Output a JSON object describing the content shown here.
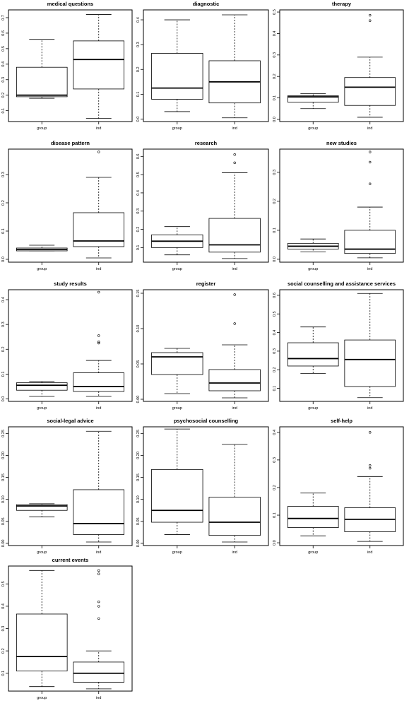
{
  "chart_data": [
    {
      "type": "box",
      "title": "medical questions",
      "categories": [
        "group",
        "ind"
      ],
      "ylim": [
        0.03,
        0.75
      ],
      "yticks": [
        0.1,
        0.2,
        0.3,
        0.4,
        0.5,
        0.6,
        0.7
      ],
      "ytick_labels": [
        "0.1",
        "0.2",
        "0.3",
        "0.4",
        "0.5",
        "0.6",
        "0.7"
      ],
      "boxes": [
        {
          "category": "group",
          "whisker_low": 0.18,
          "q1": 0.19,
          "median": 0.2,
          "q3": 0.38,
          "whisker_high": 0.56,
          "outliers": []
        },
        {
          "category": "ind",
          "whisker_low": 0.05,
          "q1": 0.24,
          "median": 0.43,
          "q3": 0.55,
          "whisker_high": 0.72,
          "outliers": []
        }
      ]
    },
    {
      "type": "box",
      "title": "diagnostic",
      "categories": [
        "group",
        "ind"
      ],
      "ylim": [
        -0.01,
        0.44
      ],
      "yticks": [
        0.0,
        0.1,
        0.2,
        0.3,
        0.4
      ],
      "ytick_labels": [
        "0.0",
        "0.1",
        "0.2",
        "0.3",
        "0.4"
      ],
      "boxes": [
        {
          "category": "group",
          "whisker_low": 0.03,
          "q1": 0.08,
          "median": 0.125,
          "q3": 0.265,
          "whisker_high": 0.4,
          "outliers": []
        },
        {
          "category": "ind",
          "whisker_low": 0.005,
          "q1": 0.065,
          "median": 0.15,
          "q3": 0.235,
          "whisker_high": 0.42,
          "outliers": []
        }
      ]
    },
    {
      "type": "box",
      "title": "therapy",
      "categories": [
        "group",
        "ind"
      ],
      "ylim": [
        -0.01,
        0.51
      ],
      "yticks": [
        0.0,
        0.1,
        0.2,
        0.3,
        0.4,
        0.5
      ],
      "ytick_labels": [
        "0.0",
        "0.1",
        "0.2",
        "0.3",
        "0.4",
        "0.5"
      ],
      "boxes": [
        {
          "category": "group",
          "whisker_low": 0.05,
          "q1": 0.08,
          "median": 0.105,
          "q3": 0.11,
          "whisker_high": 0.12,
          "outliers": []
        },
        {
          "category": "ind",
          "whisker_low": 0.01,
          "q1": 0.065,
          "median": 0.15,
          "q3": 0.195,
          "whisker_high": 0.29,
          "outliers": [
            0.46,
            0.485
          ]
        }
      ]
    },
    {
      "type": "box",
      "title": "disease pattern",
      "categories": [
        "group",
        "ind"
      ],
      "ylim": [
        -0.01,
        0.39
      ],
      "yticks": [
        0.0,
        0.1,
        0.2,
        0.3
      ],
      "ytick_labels": [
        "0.0",
        "0.1",
        "0.2",
        "0.3"
      ],
      "boxes": [
        {
          "category": "group",
          "whisker_low": 0.03,
          "q1": 0.03,
          "median": 0.035,
          "q3": 0.04,
          "whisker_high": 0.05,
          "outliers": []
        },
        {
          "category": "ind",
          "whisker_low": 0.005,
          "q1": 0.045,
          "median": 0.065,
          "q3": 0.165,
          "whisker_high": 0.29,
          "outliers": [
            0.38
          ]
        }
      ]
    },
    {
      "type": "box",
      "title": "research",
      "categories": [
        "group",
        "ind"
      ],
      "ylim": [
        0.02,
        0.64
      ],
      "yticks": [
        0.1,
        0.2,
        0.3,
        0.4,
        0.5,
        0.6
      ],
      "ytick_labels": [
        "0.1",
        "0.2",
        "0.3",
        "0.4",
        "0.5",
        "0.6"
      ],
      "boxes": [
        {
          "category": "group",
          "whisker_low": 0.06,
          "q1": 0.1,
          "median": 0.135,
          "q3": 0.17,
          "whisker_high": 0.215,
          "outliers": []
        },
        {
          "category": "ind",
          "whisker_low": 0.04,
          "q1": 0.075,
          "median": 0.115,
          "q3": 0.26,
          "whisker_high": 0.51,
          "outliers": [
            0.565,
            0.61
          ]
        }
      ]
    },
    {
      "type": "box",
      "title": "new studies",
      "categories": [
        "group",
        "ind"
      ],
      "ylim": [
        -0.01,
        0.38
      ],
      "yticks": [
        0.0,
        0.1,
        0.2,
        0.3
      ],
      "ytick_labels": [
        "0.0",
        "0.1",
        "0.2",
        "0.3"
      ],
      "boxes": [
        {
          "category": "group",
          "whisker_low": 0.025,
          "q1": 0.035,
          "median": 0.045,
          "q3": 0.055,
          "whisker_high": 0.07,
          "outliers": []
        },
        {
          "category": "ind",
          "whisker_low": 0.005,
          "q1": 0.02,
          "median": 0.035,
          "q3": 0.1,
          "whisker_high": 0.18,
          "outliers": [
            0.26,
            0.335,
            0.37
          ]
        }
      ]
    },
    {
      "type": "box",
      "title": "study results",
      "categories": [
        "group",
        "ind"
      ],
      "ylim": [
        -0.01,
        0.44
      ],
      "yticks": [
        0.0,
        0.1,
        0.2,
        0.3,
        0.4
      ],
      "ytick_labels": [
        "0.0",
        "0.1",
        "0.2",
        "0.3",
        "0.4"
      ],
      "boxes": [
        {
          "category": "group",
          "whisker_low": 0.01,
          "q1": 0.035,
          "median": 0.055,
          "q3": 0.065,
          "whisker_high": 0.07,
          "outliers": []
        },
        {
          "category": "ind",
          "whisker_low": 0.01,
          "q1": 0.03,
          "median": 0.05,
          "q3": 0.105,
          "whisker_high": 0.155,
          "outliers": [
            0.225,
            0.23,
            0.255,
            0.43
          ]
        }
      ]
    },
    {
      "type": "box",
      "title": "register",
      "categories": [
        "group",
        "ind"
      ],
      "ylim": [
        -0.003,
        0.155
      ],
      "yticks": [
        0.0,
        0.05,
        0.1,
        0.15
      ],
      "ytick_labels": [
        "0.00",
        "0.05",
        "0.10",
        "0.15"
      ],
      "boxes": [
        {
          "category": "group",
          "whisker_low": 0.008,
          "q1": 0.035,
          "median": 0.06,
          "q3": 0.066,
          "whisker_high": 0.072,
          "outliers": []
        },
        {
          "category": "ind",
          "whisker_low": 0.002,
          "q1": 0.012,
          "median": 0.023,
          "q3": 0.042,
          "whisker_high": 0.077,
          "outliers": [
            0.107,
            0.148
          ]
        }
      ]
    },
    {
      "type": "box",
      "title": "social counselling and assistance services",
      "categories": [
        "group",
        "ind"
      ],
      "ylim": [
        0.03,
        0.63
      ],
      "yticks": [
        0.1,
        0.2,
        0.3,
        0.4,
        0.5,
        0.6
      ],
      "ytick_labels": [
        "0.1",
        "0.2",
        "0.3",
        "0.4",
        "0.5",
        "0.6"
      ],
      "boxes": [
        {
          "category": "group",
          "whisker_low": 0.18,
          "q1": 0.22,
          "median": 0.26,
          "q3": 0.345,
          "whisker_high": 0.43,
          "outliers": []
        },
        {
          "category": "ind",
          "whisker_low": 0.05,
          "q1": 0.11,
          "median": 0.255,
          "q3": 0.36,
          "whisker_high": 0.61,
          "outliers": []
        }
      ]
    },
    {
      "type": "box",
      "title": "social-legal advice",
      "categories": [
        "group",
        "ind"
      ],
      "ylim": [
        -0.005,
        0.265
      ],
      "yticks": [
        0.0,
        0.05,
        0.1,
        0.15,
        0.2,
        0.25
      ],
      "ytick_labels": [
        "0.00",
        "0.05",
        "0.10",
        "0.15",
        "0.20",
        "0.25"
      ],
      "boxes": [
        {
          "category": "group",
          "whisker_low": 0.06,
          "q1": 0.075,
          "median": 0.085,
          "q3": 0.088,
          "whisker_high": 0.09,
          "outliers": []
        },
        {
          "category": "ind",
          "whisker_low": 0.003,
          "q1": 0.02,
          "median": 0.045,
          "q3": 0.122,
          "whisker_high": 0.255,
          "outliers": []
        }
      ]
    },
    {
      "type": "box",
      "title": "psychosocial counselling",
      "categories": [
        "group",
        "ind"
      ],
      "ylim": [
        -0.005,
        0.265
      ],
      "yticks": [
        0.0,
        0.05,
        0.1,
        0.15,
        0.2,
        0.25
      ],
      "ytick_labels": [
        "0.00",
        "0.05",
        "0.10",
        "0.15",
        "0.20",
        "0.25"
      ],
      "boxes": [
        {
          "category": "group",
          "whisker_low": 0.02,
          "q1": 0.048,
          "median": 0.075,
          "q3": 0.168,
          "whisker_high": 0.26,
          "outliers": []
        },
        {
          "category": "ind",
          "whisker_low": 0.003,
          "q1": 0.018,
          "median": 0.048,
          "q3": 0.105,
          "whisker_high": 0.225,
          "outliers": []
        }
      ]
    },
    {
      "type": "box",
      "title": "self-help",
      "categories": [
        "group",
        "ind"
      ],
      "ylim": [
        -0.01,
        0.42
      ],
      "yticks": [
        0.0,
        0.1,
        0.2,
        0.3,
        0.4
      ],
      "ytick_labels": [
        "0.0",
        "0.1",
        "0.2",
        "0.3",
        "0.4"
      ],
      "boxes": [
        {
          "category": "group",
          "whisker_low": 0.025,
          "q1": 0.055,
          "median": 0.088,
          "q3": 0.132,
          "whisker_high": 0.18,
          "outliers": []
        },
        {
          "category": "ind",
          "whisker_low": 0.005,
          "q1": 0.04,
          "median": 0.085,
          "q3": 0.127,
          "whisker_high": 0.24,
          "outliers": [
            0.27,
            0.28,
            0.4
          ]
        }
      ]
    },
    {
      "type": "box",
      "title": "current events",
      "categories": [
        "group",
        "ind"
      ],
      "ylim": [
        0.02,
        0.58
      ],
      "yticks": [
        0.1,
        0.2,
        0.3,
        0.4,
        0.5
      ],
      "ytick_labels": [
        "0.1",
        "0.2",
        "0.3",
        "0.4",
        "0.5"
      ],
      "boxes": [
        {
          "category": "group",
          "whisker_low": 0.04,
          "q1": 0.11,
          "median": 0.175,
          "q3": 0.365,
          "whisker_high": 0.56,
          "outliers": []
        },
        {
          "category": "ind",
          "whisker_low": 0.03,
          "q1": 0.06,
          "median": 0.1,
          "q3": 0.15,
          "whisker_high": 0.2,
          "outliers": [
            0.345,
            0.4,
            0.42,
            0.545,
            0.56
          ]
        }
      ]
    }
  ]
}
